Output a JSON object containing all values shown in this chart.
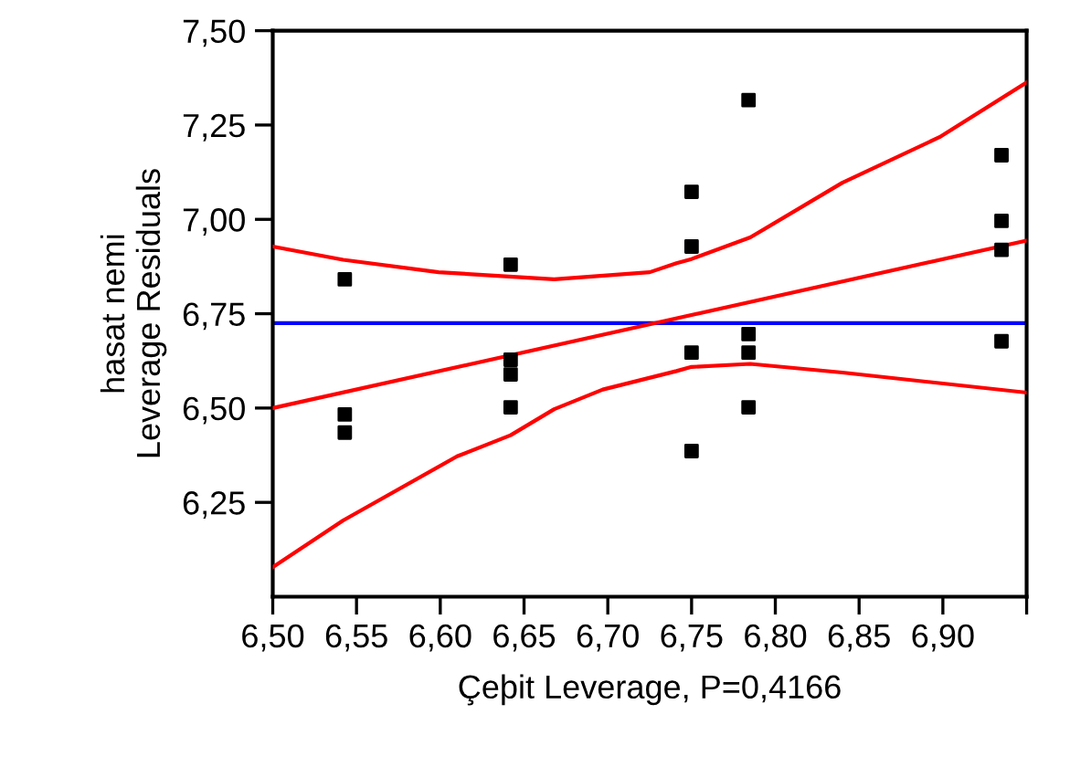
{
  "chart_data": {
    "type": "scatter",
    "xlabel": "Çeþit Leverage, P=0,4166",
    "ylabel": "hasat nemi\nLeverage Residuals",
    "xlim": [
      6.5,
      6.95
    ],
    "ylim": [
      6.0,
      7.5
    ],
    "xticks": [
      {
        "value": 6.5,
        "label": "6,50"
      },
      {
        "value": 6.55,
        "label": "6,55"
      },
      {
        "value": 6.6,
        "label": "6,60"
      },
      {
        "value": 6.65,
        "label": "6,65"
      },
      {
        "value": 6.7,
        "label": "6,70"
      },
      {
        "value": 6.75,
        "label": "6,75"
      },
      {
        "value": 6.8,
        "label": "6,80"
      },
      {
        "value": 6.85,
        "label": "6,85"
      },
      {
        "value": 6.9,
        "label": "6,90"
      },
      {
        "value": 6.95,
        "label": null
      }
    ],
    "yticks": [
      {
        "value": 6.25,
        "label": "6,25"
      },
      {
        "value": 6.5,
        "label": "6,50"
      },
      {
        "value": 6.75,
        "label": "6,75"
      },
      {
        "value": 7.0,
        "label": "7,00"
      },
      {
        "value": 7.25,
        "label": "7,25"
      },
      {
        "value": 7.5,
        "label": "7,50"
      }
    ],
    "grid": false,
    "legend": false,
    "ref_lines": [
      {
        "axis": "y",
        "value": 6.725,
        "color": "#0000ff",
        "line_style": "solid"
      }
    ],
    "series": [
      {
        "marker": "square",
        "color": "#000000",
        "x": [
          6.543,
          6.543,
          6.543,
          6.642,
          6.642,
          6.642,
          6.642,
          6.75,
          6.75,
          6.75,
          6.75,
          6.784,
          6.784,
          6.784,
          6.784,
          6.935,
          6.935,
          6.935,
          6.935
        ],
        "values": [
          6.841,
          6.483,
          6.435,
          6.88,
          6.628,
          6.589,
          6.502,
          7.073,
          6.928,
          6.647,
          6.386,
          7.316,
          6.696,
          6.647,
          6.502,
          7.17,
          6.996,
          6.919,
          6.677
        ]
      },
      {
        "type": "line",
        "marker": "none",
        "line_style": "solid",
        "color": "#ff0000",
        "x": [
          6.5,
          6.95
        ],
        "values": [
          6.5,
          6.944
        ]
      },
      {
        "type": "line",
        "marker": "none",
        "line_style": "solid",
        "color": "#ff0000",
        "x": [
          6.5,
          6.542,
          6.599,
          6.668,
          6.725,
          6.741,
          6.75,
          6.785,
          6.84,
          6.898,
          6.95
        ],
        "values": [
          6.928,
          6.893,
          6.86,
          6.841,
          6.86,
          6.884,
          6.895,
          6.952,
          7.097,
          7.218,
          7.363
        ]
      },
      {
        "type": "line",
        "marker": "none",
        "line_style": "solid",
        "color": "#ff0000",
        "x": [
          6.5,
          6.542,
          6.61,
          6.642,
          6.668,
          6.697,
          6.741,
          6.75,
          6.785,
          6.84,
          6.95
        ],
        "values": [
          6.078,
          6.202,
          6.372,
          6.428,
          6.497,
          6.549,
          6.598,
          6.609,
          6.617,
          6.594,
          6.541
        ]
      }
    ]
  }
}
